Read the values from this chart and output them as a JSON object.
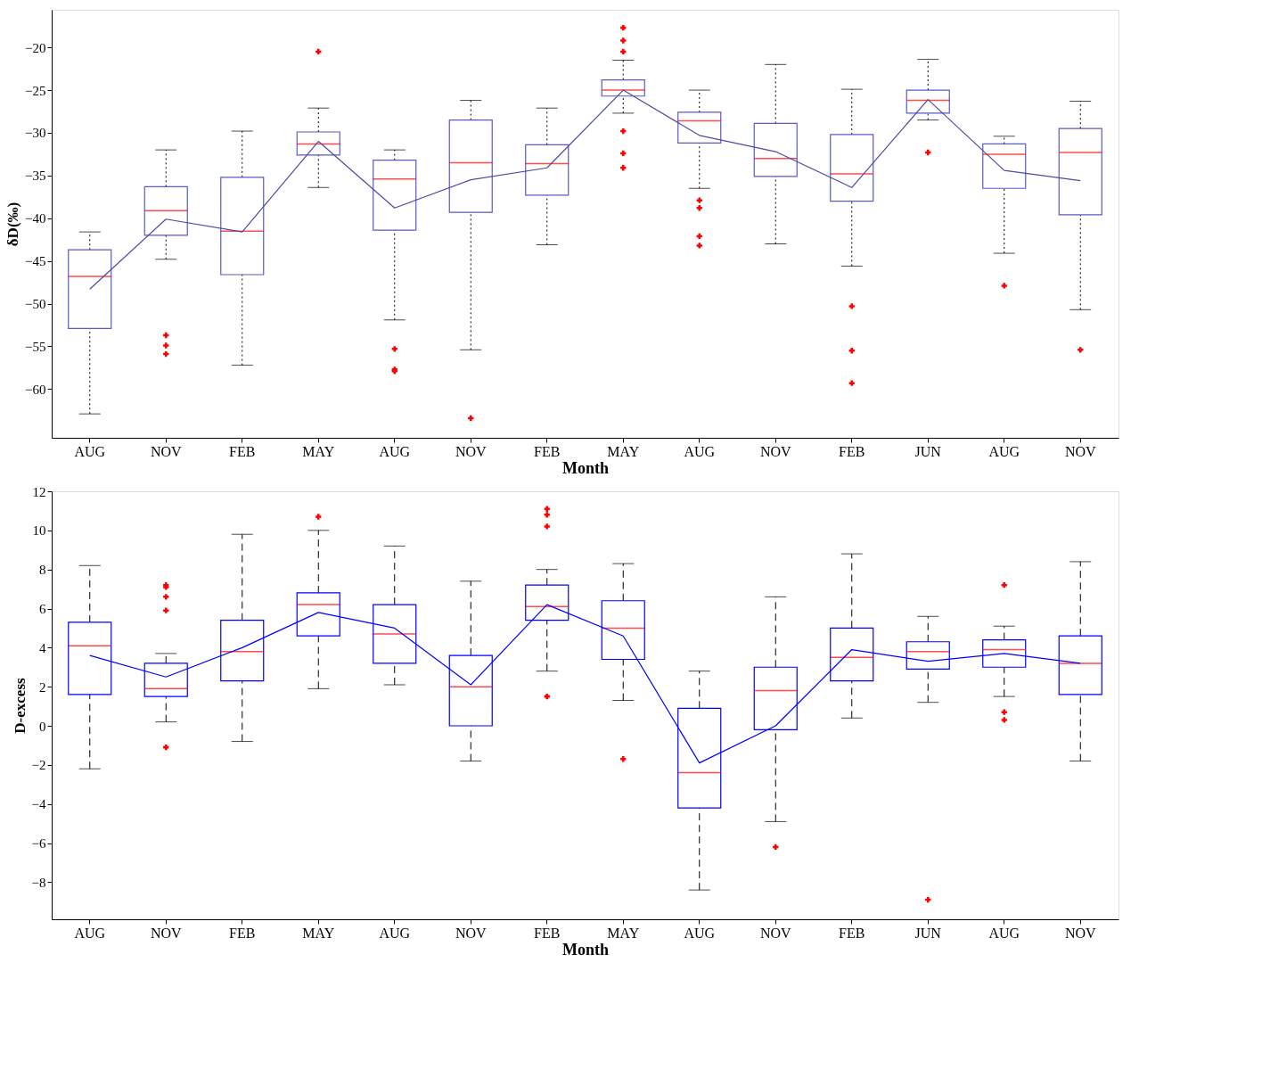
{
  "chart_data": [
    {
      "type": "box",
      "xlabel": "Month",
      "ylabel": "δD(‰)",
      "grid": false,
      "categories": [
        "AUG",
        "NOV",
        "FEB",
        "MAY",
        "AUG",
        "NOV",
        "FEB",
        "MAY",
        "AUG",
        "NOV",
        "FEB",
        "JUN",
        "AUG",
        "NOV"
      ],
      "ylim": [
        -65.7,
        -15.6
      ],
      "yticks": [
        -60,
        -55,
        -50,
        -45,
        -40,
        -35,
        -30,
        -25,
        -20
      ],
      "series": [
        {
          "type": "box",
          "color": "#5a5ac8",
          "line_style": "dotted",
          "boxes": [
            {
              "low": -62.9,
              "q1": -52.9,
              "median": -46.8,
              "q3": -43.7,
              "high": -41.6
            },
            {
              "low": -44.8,
              "q1": -42.0,
              "median": -39.1,
              "q3": -36.3,
              "high": -32.0,
              "outliers": [
                -53.7,
                -54.9,
                -55.9
              ]
            },
            {
              "low": -57.2,
              "q1": -46.6,
              "median": -41.5,
              "q3": -35.2,
              "high": -29.8
            },
            {
              "low": -36.4,
              "q1": -32.6,
              "median": -31.3,
              "q3": -29.9,
              "high": -27.1,
              "outliers": [
                -20.5
              ]
            },
            {
              "low": -51.9,
              "q1": -41.4,
              "median": -35.4,
              "q3": -33.2,
              "high": -32.0,
              "outliers": [
                -55.3,
                -57.7,
                -57.9
              ]
            },
            {
              "low": -55.4,
              "q1": -39.3,
              "median": -33.5,
              "q3": -28.5,
              "high": -26.2,
              "outliers": [
                -63.4
              ]
            },
            {
              "low": -43.1,
              "q1": -37.3,
              "median": -33.6,
              "q3": -31.4,
              "high": -27.1
            },
            {
              "low": -27.7,
              "q1": -25.7,
              "median": -25.0,
              "q3": -23.8,
              "high": -21.5,
              "outliers": [
                -17.7,
                -19.2,
                -20.5,
                -29.8,
                -32.4,
                -34.1
              ]
            },
            {
              "low": -36.5,
              "q1": -31.2,
              "median": -28.6,
              "q3": -27.6,
              "high": -25.0,
              "outliers": [
                -37.9,
                -38.8,
                -42.1,
                -43.2
              ]
            },
            {
              "low": -43.0,
              "q1": -35.1,
              "median": -33.0,
              "q3": -28.9,
              "high": -22.0
            },
            {
              "low": -45.6,
              "q1": -38.0,
              "median": -34.8,
              "q3": -30.2,
              "high": -24.9,
              "outliers": [
                -50.3,
                -55.5,
                -59.3
              ]
            },
            {
              "low": -28.5,
              "q1": -27.7,
              "median": -26.2,
              "q3": -25.0,
              "high": -21.4,
              "outliers": [
                -32.3
              ]
            },
            {
              "low": -44.1,
              "q1": -36.5,
              "median": -32.5,
              "q3": -31.3,
              "high": -30.4,
              "outliers": [
                -47.9
              ]
            },
            {
              "low": -50.7,
              "q1": -39.6,
              "median": -32.3,
              "q3": -29.5,
              "high": -26.3,
              "outliers": [
                -55.4
              ]
            }
          ]
        },
        {
          "type": "line",
          "color": "#4a4aa8",
          "values": [
            -48.3,
            -40.1,
            -41.6,
            -31.0,
            -38.8,
            -35.5,
            -34.1,
            -25.0,
            -30.3,
            -32.2,
            -36.4,
            -26.1,
            -34.4,
            -35.6
          ]
        }
      ]
    },
    {
      "type": "box",
      "xlabel": "Month",
      "ylabel": "D-excess",
      "grid": false,
      "categories": [
        "AUG",
        "NOV",
        "FEB",
        "MAY",
        "AUG",
        "NOV",
        "FEB",
        "MAY",
        "AUG",
        "NOV",
        "FEB",
        "JUN",
        "AUG",
        "NOV"
      ],
      "ylim": [
        -9.9,
        12
      ],
      "yticks": [
        -8,
        -6,
        -4,
        -2,
        0,
        2,
        4,
        6,
        8,
        10,
        12
      ],
      "series": [
        {
          "type": "box",
          "color": "#0000ff",
          "line_style": "dashed",
          "boxes": [
            {
              "low": -2.2,
              "q1": 1.6,
              "median": 4.1,
              "q3": 5.3,
              "high": 8.2
            },
            {
              "low": 0.2,
              "q1": 1.5,
              "median": 1.9,
              "q3": 3.2,
              "high": 3.7,
              "outliers": [
                7.2,
                7.1,
                6.6,
                5.9,
                -1.1
              ]
            },
            {
              "low": -0.8,
              "q1": 2.3,
              "median": 3.8,
              "q3": 5.4,
              "high": 9.8
            },
            {
              "low": 1.9,
              "q1": 4.6,
              "median": 6.2,
              "q3": 6.8,
              "high": 10.0,
              "outliers": [
                10.7
              ]
            },
            {
              "low": 2.1,
              "q1": 3.2,
              "median": 4.7,
              "q3": 6.2,
              "high": 9.2
            },
            {
              "low": -1.8,
              "q1": 0.0,
              "median": 2.0,
              "q3": 3.6,
              "high": 7.4
            },
            {
              "low": 2.8,
              "q1": 5.4,
              "median": 6.1,
              "q3": 7.2,
              "high": 8.0,
              "outliers": [
                11.1,
                10.8,
                10.2,
                1.5
              ]
            },
            {
              "low": 1.3,
              "q1": 3.4,
              "median": 5.0,
              "q3": 6.4,
              "high": 8.3,
              "outliers": [
                -1.7
              ]
            },
            {
              "low": -8.4,
              "q1": -4.2,
              "median": -2.4,
              "q3": 0.9,
              "high": 2.8
            },
            {
              "low": -4.9,
              "q1": -0.2,
              "median": 1.8,
              "q3": 3.0,
              "high": 6.6,
              "outliers": [
                -6.2
              ]
            },
            {
              "low": 0.4,
              "q1": 2.3,
              "median": 3.5,
              "q3": 5.0,
              "high": 8.8
            },
            {
              "low": 1.2,
              "q1": 2.9,
              "median": 3.8,
              "q3": 4.3,
              "high": 5.6,
              "outliers": [
                -8.9
              ]
            },
            {
              "low": 1.5,
              "q1": 3.0,
              "median": 3.9,
              "q3": 4.4,
              "high": 5.1,
              "outliers": [
                7.2,
                0.7,
                0.3
              ]
            },
            {
              "low": -1.8,
              "q1": 1.6,
              "median": 3.2,
              "q3": 4.6,
              "high": 8.4
            }
          ]
        },
        {
          "type": "line",
          "color": "#0000ff",
          "values": [
            3.6,
            2.5,
            4.0,
            5.8,
            5.0,
            2.1,
            6.2,
            4.6,
            -1.9,
            0.0,
            3.9,
            3.3,
            3.7,
            3.2
          ]
        }
      ]
    }
  ]
}
